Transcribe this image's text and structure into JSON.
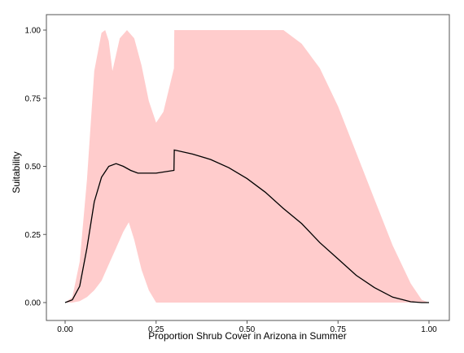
{
  "chart_data": {
    "type": "area",
    "title": "",
    "xlabel": "Proportion Shrub Cover in Arizona in Summer",
    "ylabel": "Suitability",
    "xlim": [
      0,
      1
    ],
    "ylim": [
      0,
      1
    ],
    "x_ticks": [
      "0.00",
      "0.25",
      "0.50",
      "0.75",
      "1.00"
    ],
    "y_ticks": [
      "0.00",
      "0.25",
      "0.50",
      "0.75",
      "1.00"
    ],
    "grid": false,
    "legend": "none",
    "colors": {
      "band": "#ffcccc",
      "line": "#000000",
      "frame": "#555555"
    },
    "series": [
      {
        "role": "line",
        "x": [
          0.0,
          0.02,
          0.04,
          0.06,
          0.08,
          0.1,
          0.12,
          0.14,
          0.16,
          0.18,
          0.2,
          0.25,
          0.299,
          0.3,
          0.35,
          0.4,
          0.45,
          0.5,
          0.55,
          0.6,
          0.65,
          0.7,
          0.75,
          0.8,
          0.85,
          0.9,
          0.95,
          0.98,
          1.0
        ],
        "y": [
          0.0,
          0.01,
          0.06,
          0.2,
          0.37,
          0.46,
          0.5,
          0.51,
          0.5,
          0.485,
          0.475,
          0.475,
          0.485,
          0.56,
          0.545,
          0.525,
          0.495,
          0.455,
          0.405,
          0.345,
          0.29,
          0.22,
          0.16,
          0.1,
          0.055,
          0.02,
          0.003,
          0.0,
          0.0
        ]
      },
      {
        "role": "upper",
        "x": [
          0.0,
          0.02,
          0.04,
          0.06,
          0.08,
          0.1,
          0.11,
          0.12,
          0.13,
          0.15,
          0.17,
          0.19,
          0.21,
          0.23,
          0.25,
          0.27,
          0.299,
          0.3,
          0.6,
          0.65,
          0.7,
          0.75,
          0.8,
          0.85,
          0.9,
          0.95,
          0.98,
          1.0
        ],
        "y": [
          0.0,
          0.02,
          0.15,
          0.45,
          0.85,
          0.99,
          1.0,
          0.96,
          0.85,
          0.97,
          1.0,
          0.97,
          0.87,
          0.74,
          0.66,
          0.7,
          0.86,
          1.0,
          1.0,
          0.95,
          0.86,
          0.72,
          0.55,
          0.38,
          0.21,
          0.07,
          0.01,
          0.0
        ]
      },
      {
        "role": "lower",
        "x": [
          0.0,
          0.02,
          0.04,
          0.06,
          0.08,
          0.1,
          0.12,
          0.14,
          0.16,
          0.175,
          0.19,
          0.21,
          0.23,
          0.25,
          0.3,
          1.0
        ],
        "y": [
          0.0,
          0.0,
          0.005,
          0.02,
          0.045,
          0.08,
          0.14,
          0.2,
          0.26,
          0.295,
          0.23,
          0.12,
          0.045,
          0.0,
          0.0,
          0.0
        ]
      }
    ]
  }
}
